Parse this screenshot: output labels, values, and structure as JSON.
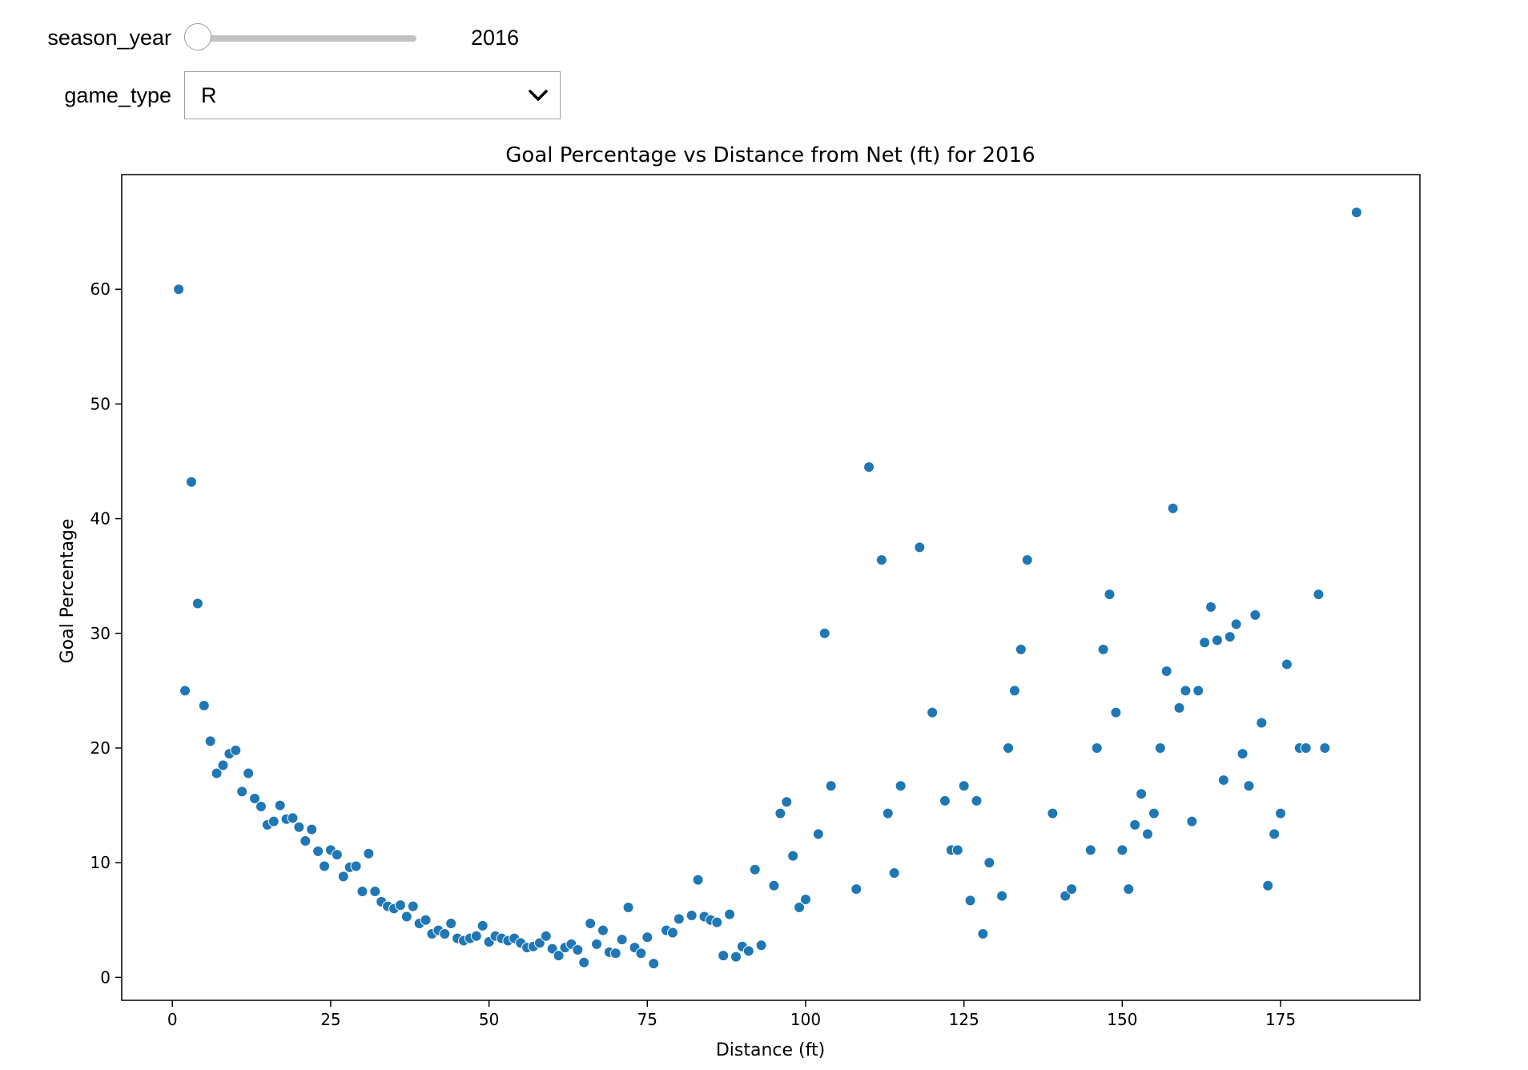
{
  "widgets": {
    "season_year": {
      "label": "season_year",
      "value": "2016",
      "position": 0.0
    },
    "game_type": {
      "label": "game_type",
      "value": "R"
    }
  },
  "chart_data": {
    "type": "scatter",
    "title": "Goal Percentage vs Distance from Net (ft) for 2016",
    "xlabel": "Distance (ft)",
    "ylabel": "Goal Percentage",
    "xlim": [
      -8,
      197
    ],
    "ylim": [
      -2,
      70
    ],
    "xticks": [
      0,
      25,
      50,
      75,
      100,
      125,
      150,
      175
    ],
    "yticks": [
      0,
      10,
      20,
      30,
      40,
      50,
      60
    ],
    "grid": false,
    "marker_color": "#1f77b4",
    "points": [
      [
        1,
        60.0
      ],
      [
        2,
        25.0
      ],
      [
        3,
        43.2
      ],
      [
        4,
        32.6
      ],
      [
        5,
        23.7
      ],
      [
        6,
        20.6
      ],
      [
        7,
        17.8
      ],
      [
        8,
        18.5
      ],
      [
        9,
        19.5
      ],
      [
        10,
        19.8
      ],
      [
        11,
        16.2
      ],
      [
        12,
        17.8
      ],
      [
        13,
        15.6
      ],
      [
        14,
        14.9
      ],
      [
        15,
        13.3
      ],
      [
        16,
        13.6
      ],
      [
        17,
        15.0
      ],
      [
        18,
        13.8
      ],
      [
        19,
        13.9
      ],
      [
        20,
        13.1
      ],
      [
        21,
        11.9
      ],
      [
        22,
        12.9
      ],
      [
        23,
        11.0
      ],
      [
        24,
        9.7
      ],
      [
        25,
        11.1
      ],
      [
        26,
        10.7
      ],
      [
        27,
        8.8
      ],
      [
        28,
        9.6
      ],
      [
        29,
        9.7
      ],
      [
        30,
        7.5
      ],
      [
        31,
        10.8
      ],
      [
        32,
        7.5
      ],
      [
        33,
        6.6
      ],
      [
        34,
        6.2
      ],
      [
        35,
        6.0
      ],
      [
        36,
        6.3
      ],
      [
        37,
        5.3
      ],
      [
        38,
        6.2
      ],
      [
        39,
        4.7
      ],
      [
        40,
        5.0
      ],
      [
        41,
        3.8
      ],
      [
        42,
        4.1
      ],
      [
        43,
        3.8
      ],
      [
        44,
        4.7
      ],
      [
        45,
        3.4
      ],
      [
        46,
        3.2
      ],
      [
        47,
        3.4
      ],
      [
        48,
        3.6
      ],
      [
        49,
        4.5
      ],
      [
        50,
        3.1
      ],
      [
        51,
        3.6
      ],
      [
        52,
        3.4
      ],
      [
        53,
        3.2
      ],
      [
        54,
        3.4
      ],
      [
        55,
        3.0
      ],
      [
        56,
        2.6
      ],
      [
        57,
        2.7
      ],
      [
        58,
        3.0
      ],
      [
        59,
        3.6
      ],
      [
        60,
        2.5
      ],
      [
        61,
        1.9
      ],
      [
        62,
        2.6
      ],
      [
        63,
        2.9
      ],
      [
        64,
        2.4
      ],
      [
        65,
        1.3
      ],
      [
        66,
        4.7
      ],
      [
        67,
        2.9
      ],
      [
        68,
        4.1
      ],
      [
        69,
        2.2
      ],
      [
        70,
        2.1
      ],
      [
        71,
        3.3
      ],
      [
        72,
        6.1
      ],
      [
        73,
        2.6
      ],
      [
        74,
        2.1
      ],
      [
        75,
        3.5
      ],
      [
        76,
        1.2
      ],
      [
        78,
        4.1
      ],
      [
        79,
        3.9
      ],
      [
        80,
        5.1
      ],
      [
        82,
        5.4
      ],
      [
        83,
        8.5
      ],
      [
        84,
        5.3
      ],
      [
        85,
        5.0
      ],
      [
        86,
        4.8
      ],
      [
        87,
        1.9
      ],
      [
        88,
        5.5
      ],
      [
        89,
        1.8
      ],
      [
        90,
        2.7
      ],
      [
        91,
        2.3
      ],
      [
        92,
        9.4
      ],
      [
        93,
        2.8
      ],
      [
        95,
        8.0
      ],
      [
        96,
        14.3
      ],
      [
        97,
        15.3
      ],
      [
        98,
        10.6
      ],
      [
        99,
        6.1
      ],
      [
        100,
        6.8
      ],
      [
        102,
        12.5
      ],
      [
        103,
        30.0
      ],
      [
        104,
        16.7
      ],
      [
        108,
        7.7
      ],
      [
        110,
        44.5
      ],
      [
        112,
        36.4
      ],
      [
        113,
        14.3
      ],
      [
        114,
        9.1
      ],
      [
        115,
        16.7
      ],
      [
        118,
        37.5
      ],
      [
        120,
        23.1
      ],
      [
        122,
        15.4
      ],
      [
        123,
        11.1
      ],
      [
        124,
        11.1
      ],
      [
        125,
        16.7
      ],
      [
        126,
        6.7
      ],
      [
        127,
        15.4
      ],
      [
        128,
        3.8
      ],
      [
        129,
        10.0
      ],
      [
        131,
        7.1
      ],
      [
        132,
        20.0
      ],
      [
        133,
        25.0
      ],
      [
        134,
        28.6
      ],
      [
        135,
        36.4
      ],
      [
        139,
        14.3
      ],
      [
        141,
        7.1
      ],
      [
        142,
        7.7
      ],
      [
        145,
        11.1
      ],
      [
        146,
        20.0
      ],
      [
        147,
        28.6
      ],
      [
        148,
        33.4
      ],
      [
        149,
        23.1
      ],
      [
        150,
        11.1
      ],
      [
        151,
        7.7
      ],
      [
        152,
        13.3
      ],
      [
        153,
        16.0
      ],
      [
        154,
        12.5
      ],
      [
        155,
        14.3
      ],
      [
        156,
        20.0
      ],
      [
        157,
        26.7
      ],
      [
        158,
        40.9
      ],
      [
        159,
        23.5
      ],
      [
        160,
        25.0
      ],
      [
        161,
        13.6
      ],
      [
        162,
        25.0
      ],
      [
        163,
        29.2
      ],
      [
        164,
        32.3
      ],
      [
        165,
        29.4
      ],
      [
        166,
        17.2
      ],
      [
        167,
        29.7
      ],
      [
        168,
        30.8
      ],
      [
        169,
        19.5
      ],
      [
        170,
        16.7
      ],
      [
        171,
        31.6
      ],
      [
        172,
        22.2
      ],
      [
        173,
        8.0
      ],
      [
        174,
        12.5
      ],
      [
        175,
        14.3
      ],
      [
        176,
        27.3
      ],
      [
        178,
        20.0
      ],
      [
        179,
        20.0
      ],
      [
        181,
        33.4
      ],
      [
        182,
        20.0
      ],
      [
        187,
        66.7
      ]
    ]
  }
}
